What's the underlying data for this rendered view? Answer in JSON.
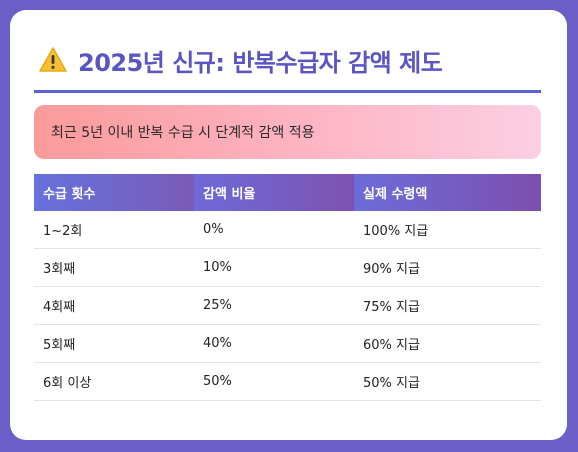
{
  "title": "2025년 신규: 반복수급자 감액 제도",
  "title_icon": "warning-icon",
  "notice": "최근 5년 이내 반복 수급 시 단계적 감액 적용",
  "colors": {
    "background": "#6b5fc7",
    "title": "#5a55c2",
    "header_start": "#6a6fdc",
    "header_end": "#7a56b8"
  },
  "table": {
    "headers": [
      "수급 횟수",
      "감액 비율",
      "실제 수령액"
    ],
    "rows": [
      [
        "1~2회",
        "0%",
        "100% 지급"
      ],
      [
        "3회째",
        "10%",
        "90% 지급"
      ],
      [
        "4회째",
        "25%",
        "75% 지급"
      ],
      [
        "5회째",
        "40%",
        "60% 지급"
      ],
      [
        "6회 이상",
        "50%",
        "50% 지급"
      ]
    ]
  }
}
